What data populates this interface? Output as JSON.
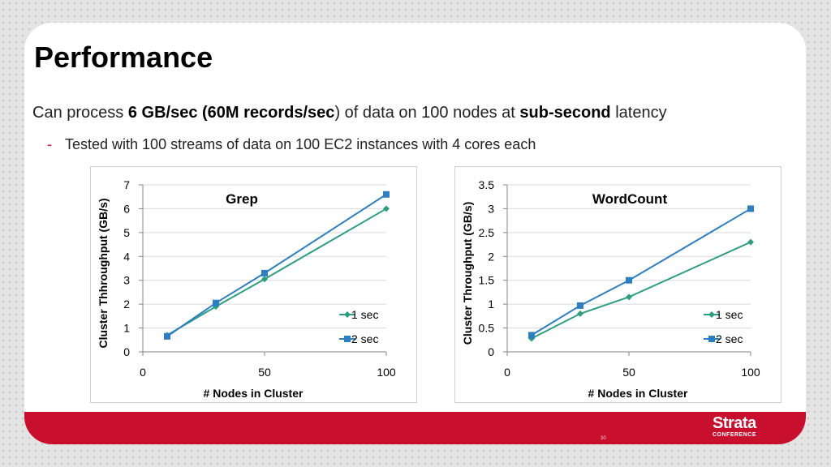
{
  "slide": {
    "title": "Performance",
    "subtitle_pre": "Can process ",
    "subtitle_bold1": "6 GB/sec (60M records/sec",
    "subtitle_mid": ") of data on 100 nodes at ",
    "subtitle_bold2": "sub-second",
    "subtitle_post": " latency",
    "bullet_marker": "-",
    "bullet_text": "Tested with 100 streams of data on 100 EC2 instances with 4 cores each",
    "page_number": "30",
    "logo_main": "Strata",
    "logo_sub": "CONFERENCE"
  },
  "colors": {
    "accent_red": "#c8102e",
    "series_1sec": "#2e9e82",
    "series_2sec": "#2e7fc1"
  },
  "chart_data": [
    {
      "type": "line",
      "title": "Grep",
      "xlabel": "# Nodes in Cluster",
      "ylabel": "Cluster Thhroughput (GB/s)",
      "xlim": [
        0,
        100
      ],
      "ylim": [
        0,
        7
      ],
      "xticks": [
        0,
        50,
        100
      ],
      "yticks": [
        0,
        1,
        2,
        3,
        4,
        5,
        6,
        7
      ],
      "ytick_labels": [
        "0",
        "1",
        "2",
        "3",
        "4",
        "5",
        "6",
        "7"
      ],
      "grid": true,
      "legend_position": "bottom-right",
      "series": [
        {
          "name": "1 sec",
          "marker": "diamond",
          "color": "#2e9e82",
          "x": [
            10,
            30,
            50,
            100
          ],
          "y": [
            0.7,
            1.9,
            3.05,
            6.0
          ]
        },
        {
          "name": "2 sec",
          "marker": "square",
          "color": "#2e7fc1",
          "x": [
            10,
            30,
            50,
            100
          ],
          "y": [
            0.65,
            2.05,
            3.3,
            6.6
          ]
        }
      ]
    },
    {
      "type": "line",
      "title": "WordCount",
      "xlabel": "# Nodes in Cluster",
      "ylabel": "Cluster Throughput (GB/s)",
      "xlim": [
        0,
        100
      ],
      "ylim": [
        0,
        3.5
      ],
      "xticks": [
        0,
        50,
        100
      ],
      "yticks": [
        0,
        0.5,
        1,
        1.5,
        2,
        2.5,
        3,
        3.5
      ],
      "ytick_labels": [
        "0",
        "0.5",
        "1",
        "1.5",
        "2",
        "2.5",
        "3",
        "3.5"
      ],
      "grid": true,
      "legend_position": "bottom-right",
      "series": [
        {
          "name": "1 sec",
          "marker": "diamond",
          "color": "#2e9e82",
          "x": [
            10,
            30,
            50,
            100
          ],
          "y": [
            0.28,
            0.8,
            1.15,
            2.3
          ]
        },
        {
          "name": "2 sec",
          "marker": "square",
          "color": "#2e7fc1",
          "x": [
            10,
            30,
            50,
            100
          ],
          "y": [
            0.35,
            0.97,
            1.5,
            3.0
          ]
        }
      ]
    }
  ]
}
